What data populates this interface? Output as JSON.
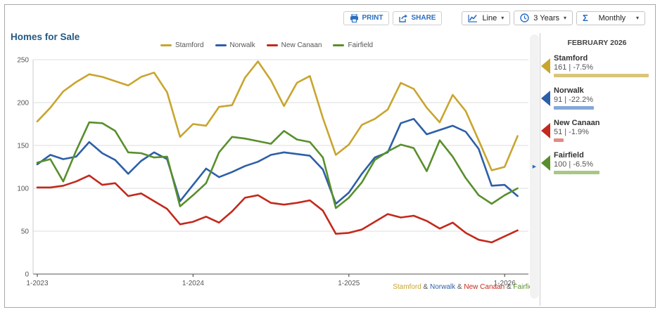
{
  "title": "Homes for Sale",
  "toolbar": {
    "print_label": "PRINT",
    "share_label": "SHARE",
    "chart_type_value": "Line",
    "range_value": "3 Years",
    "frequency_value": "Monthly",
    "accent_color": "#2a6fc0"
  },
  "sidebar": {
    "header": "FEBRUARY 2026",
    "items": [
      {
        "name": "Stamford",
        "value_text": "161 | -7.5%",
        "value": 161,
        "yoy_pct": -7.5,
        "arrow_color": "#c8a52f",
        "bar_color": "#d9c67c",
        "bar_pct": 98
      },
      {
        "name": "Norwalk",
        "value_text": "91 | -22.2%",
        "value": 91,
        "yoy_pct": -22.2,
        "arrow_color": "#2d5fa7",
        "bar_color": "#84a8d8",
        "bar_pct": 41
      },
      {
        "name": "New Canaan",
        "value_text": "51 | -1.9%",
        "value": 51,
        "yoy_pct": -1.9,
        "arrow_color": "#c3291c",
        "bar_color": "#e48a80",
        "bar_pct": 10
      },
      {
        "name": "Fairfield",
        "value_text": "100 | -6.5%",
        "value": 100,
        "yoy_pct": -6.5,
        "arrow_color": "#588f2c",
        "bar_color": "#a8c785",
        "bar_pct": 47
      }
    ]
  },
  "footer": {
    "separator": " & "
  },
  "collapse_arrow": "▶",
  "caret": "▾",
  "sigma": "Σ",
  "chart_data": {
    "type": "line",
    "title": "Homes for Sale",
    "xlabel": "",
    "ylabel": "",
    "ylim": [
      0,
      250
    ],
    "yticks": [
      0,
      50,
      100,
      150,
      200,
      250
    ],
    "grid": true,
    "legend_position": "top-center",
    "x": [
      "1-2023",
      "2-2023",
      "3-2023",
      "4-2023",
      "5-2023",
      "6-2023",
      "7-2023",
      "8-2023",
      "9-2023",
      "10-2023",
      "11-2023",
      "12-2023",
      "1-2024",
      "2-2024",
      "3-2024",
      "4-2024",
      "5-2024",
      "6-2024",
      "7-2024",
      "8-2024",
      "9-2024",
      "10-2024",
      "11-2024",
      "12-2024",
      "1-2025",
      "2-2025",
      "3-2025",
      "4-2025",
      "5-2025",
      "6-2025",
      "7-2025",
      "8-2025",
      "9-2025",
      "10-2025",
      "11-2025",
      "12-2025",
      "1-2026",
      "2-2026"
    ],
    "xticks": [
      {
        "label": "1-2023",
        "index": 0
      },
      {
        "label": "1-2024",
        "index": 12
      },
      {
        "label": "1-2025",
        "index": 24
      },
      {
        "label": "1-2026",
        "index": 36
      }
    ],
    "series": [
      {
        "name": "Stamford",
        "color": "#c8a52f",
        "values": [
          178,
          194,
          213,
          224,
          233,
          230,
          225,
          220,
          230,
          235,
          212,
          160,
          175,
          173,
          195,
          197,
          229,
          248,
          226,
          196,
          223,
          231,
          182,
          139,
          151,
          174,
          181,
          192,
          223,
          216,
          194,
          177,
          209,
          190,
          156,
          121,
          125,
          161
        ]
      },
      {
        "name": "Norwalk",
        "color": "#2d5fa7",
        "values": [
          128,
          139,
          134,
          137,
          154,
          141,
          133,
          117,
          132,
          142,
          134,
          85,
          104,
          123,
          113,
          119,
          126,
          131,
          139,
          142,
          140,
          138,
          122,
          82,
          95,
          117,
          136,
          142,
          176,
          181,
          163,
          168,
          173,
          166,
          146,
          103,
          104,
          91
        ]
      },
      {
        "name": "New Canaan",
        "color": "#c3291c",
        "values": [
          101,
          101,
          103,
          108,
          115,
          104,
          106,
          91,
          94,
          85,
          76,
          58,
          61,
          67,
          60,
          73,
          89,
          92,
          83,
          81,
          83,
          86,
          74,
          47,
          48,
          52,
          61,
          70,
          66,
          68,
          62,
          53,
          60,
          48,
          40,
          37,
          44,
          51
        ]
      },
      {
        "name": "Fairfield",
        "color": "#588f2c",
        "values": [
          130,
          134,
          108,
          144,
          177,
          176,
          167,
          142,
          141,
          136,
          137,
          79,
          92,
          106,
          142,
          160,
          158,
          155,
          152,
          167,
          157,
          154,
          136,
          77,
          89,
          107,
          133,
          143,
          151,
          147,
          120,
          156,
          137,
          112,
          92,
          82,
          92,
          100
        ]
      }
    ]
  }
}
